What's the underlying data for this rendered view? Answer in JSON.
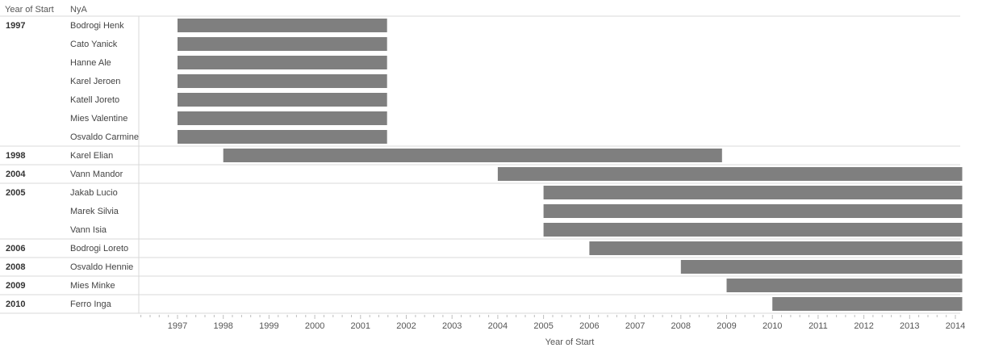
{
  "headers": {
    "group_col": "Year of Start",
    "name_col": "NyA"
  },
  "chart_data": {
    "type": "bar",
    "orientation": "horizontal-gantt",
    "xlabel": "Year of Start",
    "xlim": [
      1996.2,
      2014.15
    ],
    "x_ticks": [
      1997,
      1998,
      1999,
      2000,
      2001,
      2002,
      2003,
      2004,
      2005,
      2006,
      2007,
      2008,
      2009,
      2010,
      2011,
      2012,
      2013,
      2014
    ],
    "bar_color": "#7f7f7f",
    "groups": [
      {
        "label": "1997",
        "rows": [
          {
            "name": "Bodrogi Henk",
            "start": 1997.0,
            "end": 2001.58
          },
          {
            "name": "Cato Yanick",
            "start": 1997.0,
            "end": 2001.58
          },
          {
            "name": "Hanne Ale",
            "start": 1997.0,
            "end": 2001.58
          },
          {
            "name": "Karel Jeroen",
            "start": 1997.0,
            "end": 2001.58
          },
          {
            "name": "Katell Joreto",
            "start": 1997.0,
            "end": 2001.58
          },
          {
            "name": "Mies Valentine",
            "start": 1997.0,
            "end": 2001.58
          },
          {
            "name": "Osvaldo Carmine",
            "start": 1997.0,
            "end": 2001.58
          }
        ]
      },
      {
        "label": "1998",
        "rows": [
          {
            "name": "Karel Elian",
            "start": 1998.0,
            "end": 2008.9
          }
        ]
      },
      {
        "label": "2004",
        "rows": [
          {
            "name": "Vann Mandor",
            "start": 2004.0,
            "end": 2014.15
          }
        ]
      },
      {
        "label": "2005",
        "rows": [
          {
            "name": "Jakab Lucio",
            "start": 2005.0,
            "end": 2014.15
          },
          {
            "name": "Marek Silvia",
            "start": 2005.0,
            "end": 2014.15
          },
          {
            "name": "Vann Isia",
            "start": 2005.0,
            "end": 2014.15
          }
        ]
      },
      {
        "label": "2006",
        "rows": [
          {
            "name": "Bodrogi Loreto",
            "start": 2006.0,
            "end": 2014.15
          }
        ]
      },
      {
        "label": "2008",
        "rows": [
          {
            "name": "Osvaldo Hennie",
            "start": 2008.0,
            "end": 2014.15
          }
        ]
      },
      {
        "label": "2009",
        "rows": [
          {
            "name": "Mies Minke",
            "start": 2009.0,
            "end": 2014.15
          }
        ]
      },
      {
        "label": "2010",
        "rows": [
          {
            "name": "Ferro Inga",
            "start": 2010.0,
            "end": 2014.15
          }
        ]
      }
    ]
  }
}
